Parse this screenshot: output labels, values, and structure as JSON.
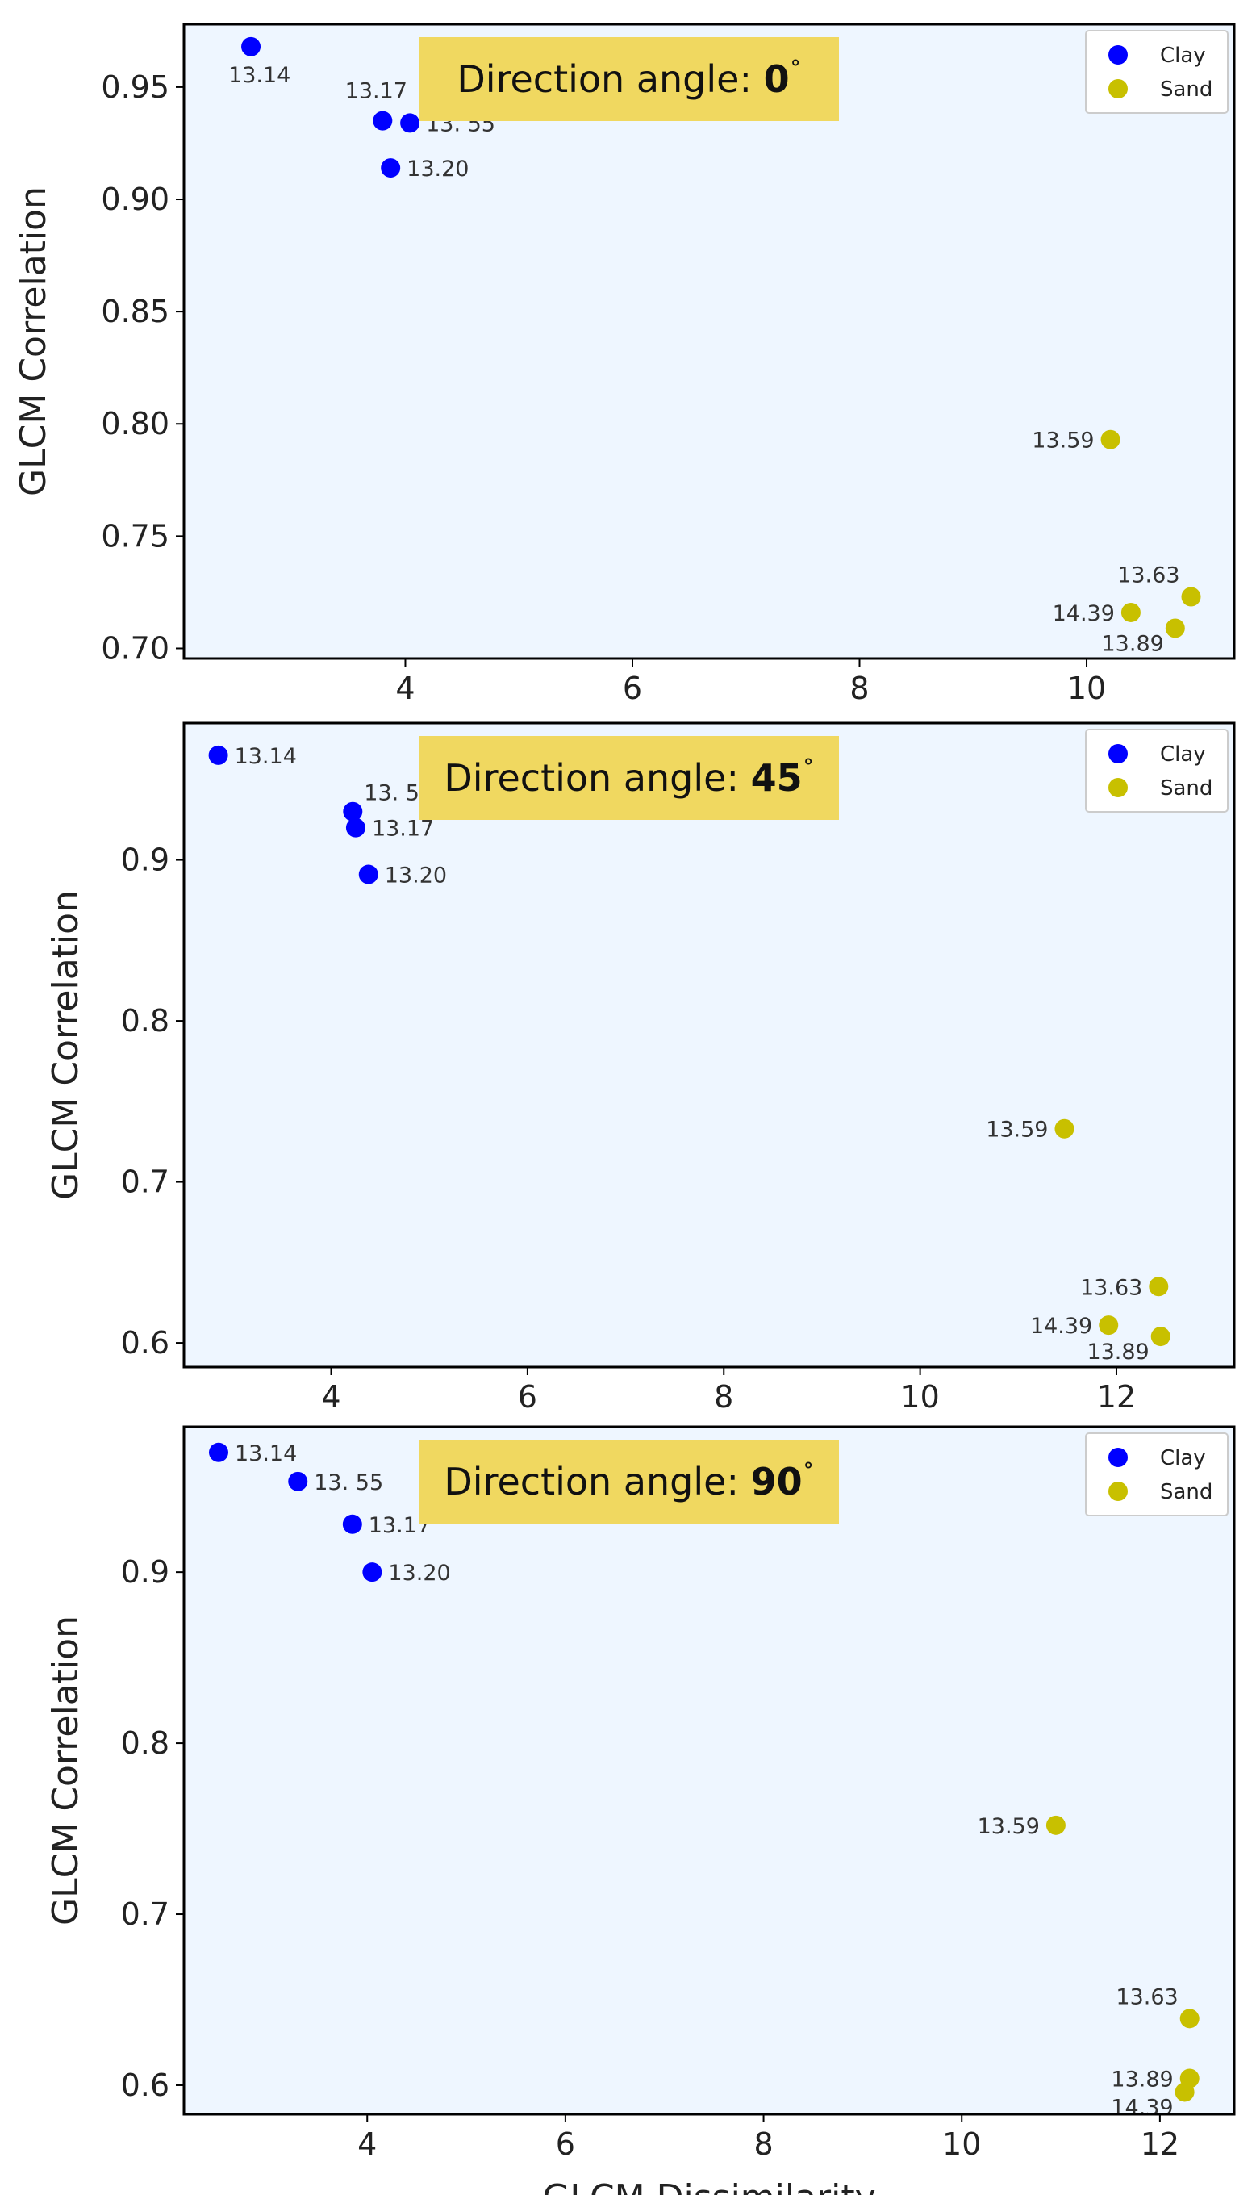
{
  "colors": {
    "plot_background": "#eef6ff",
    "frame": "#000000",
    "banner_background": "#f0d860",
    "page_background": "#ffffff"
  },
  "x_axis_title": "GLCM Dissimilarity",
  "chart_data": [
    {
      "type": "scatter",
      "banner": {
        "prefix": "Direction angle:",
        "value": "0",
        "suffix": "˚"
      },
      "xlabel": "",
      "ylabel": "GLCM Correlation",
      "xlim": [
        2.05,
        11.3
      ],
      "ylim": [
        0.6955,
        0.978
      ],
      "xticks": [
        4,
        6,
        8,
        10
      ],
      "xtick_labels": [
        "4",
        "6",
        "8",
        "10"
      ],
      "yticks": [
        0.7,
        0.75,
        0.8,
        0.85,
        0.9,
        0.95
      ],
      "ytick_labels": [
        "0.70",
        "0.75",
        "0.80",
        "0.85",
        "0.90",
        "0.95"
      ],
      "legend": {
        "position": "top-right",
        "entries": [
          {
            "label": "Clay",
            "color": "#0000ff"
          },
          {
            "label": "Sand",
            "color": "#c8c000"
          }
        ]
      },
      "series": [
        {
          "name": "Clay",
          "color": "#0000ff",
          "points": [
            {
              "x": 2.64,
              "y": 0.968,
              "label": "13.14",
              "label_pos": "below"
            },
            {
              "x": 3.8,
              "y": 0.935,
              "label": "13.17",
              "label_pos": "above"
            },
            {
              "x": 4.04,
              "y": 0.934,
              "label": "13. 55",
              "label_pos": "right"
            },
            {
              "x": 3.87,
              "y": 0.914,
              "label": "13.20",
              "label_pos": "right"
            }
          ]
        },
        {
          "name": "Sand",
          "color": "#c8c000",
          "points": [
            {
              "x": 10.21,
              "y": 0.793,
              "label": "13.59",
              "label_pos": "left"
            },
            {
              "x": 10.92,
              "y": 0.723,
              "label": "13.63",
              "label_pos": "above-left"
            },
            {
              "x": 10.39,
              "y": 0.716,
              "label": "14.39",
              "label_pos": "left"
            },
            {
              "x": 10.78,
              "y": 0.709,
              "label": "13.89",
              "label_pos": "below-left"
            }
          ]
        }
      ]
    },
    {
      "type": "scatter",
      "banner": {
        "prefix": "Direction angle:",
        "value": "45",
        "suffix": "˚"
      },
      "xlabel": "",
      "ylabel": "GLCM Correlation",
      "xlim": [
        2.5,
        13.2
      ],
      "ylim": [
        0.585,
        0.985
      ],
      "xticks": [
        4,
        6,
        8,
        10,
        12
      ],
      "xtick_labels": [
        "4",
        "6",
        "8",
        "10",
        "12"
      ],
      "yticks": [
        0.6,
        0.7,
        0.8,
        0.9
      ],
      "ytick_labels": [
        "0.6",
        "0.7",
        "0.8",
        "0.9"
      ],
      "legend": {
        "position": "top-right",
        "entries": [
          {
            "label": "Clay",
            "color": "#0000ff"
          },
          {
            "label": "Sand",
            "color": "#c8c000"
          }
        ]
      },
      "series": [
        {
          "name": "Clay",
          "color": "#0000ff",
          "points": [
            {
              "x": 2.85,
              "y": 0.965,
              "label": "13.14",
              "label_pos": "right"
            },
            {
              "x": 4.22,
              "y": 0.93,
              "label": "13. 55",
              "label_pos": "above-right"
            },
            {
              "x": 4.25,
              "y": 0.92,
              "label": "13.17",
              "label_pos": "right"
            },
            {
              "x": 4.38,
              "y": 0.891,
              "label": "13.20",
              "label_pos": "right"
            }
          ]
        },
        {
          "name": "Sand",
          "color": "#c8c000",
          "points": [
            {
              "x": 11.47,
              "y": 0.733,
              "label": "13.59",
              "label_pos": "left"
            },
            {
              "x": 12.43,
              "y": 0.635,
              "label": "13.63",
              "label_pos": "left"
            },
            {
              "x": 11.92,
              "y": 0.611,
              "label": "14.39",
              "label_pos": "left"
            },
            {
              "x": 12.45,
              "y": 0.604,
              "label": "13.89",
              "label_pos": "below-left"
            }
          ]
        }
      ]
    },
    {
      "type": "scatter",
      "banner": {
        "prefix": "Direction angle:",
        "value": "90",
        "suffix": "˚"
      },
      "xlabel": "GLCM Dissimilarity",
      "ylabel": "GLCM Correlation",
      "xlim": [
        2.15,
        12.75
      ],
      "ylim": [
        0.583,
        0.985
      ],
      "xticks": [
        4,
        6,
        8,
        10,
        12
      ],
      "xtick_labels": [
        "4",
        "6",
        "8",
        "10",
        "12"
      ],
      "yticks": [
        0.6,
        0.7,
        0.8,
        0.9
      ],
      "ytick_labels": [
        "0.6",
        "0.7",
        "0.8",
        "0.9"
      ],
      "legend": {
        "position": "top-right",
        "entries": [
          {
            "label": "Clay",
            "color": "#0000ff"
          },
          {
            "label": "Sand",
            "color": "#c8c000"
          }
        ]
      },
      "series": [
        {
          "name": "Clay",
          "color": "#0000ff",
          "points": [
            {
              "x": 2.5,
              "y": 0.97,
              "label": "13.14",
              "label_pos": "right"
            },
            {
              "x": 3.3,
              "y": 0.953,
              "label": "13. 55",
              "label_pos": "right"
            },
            {
              "x": 3.85,
              "y": 0.928,
              "label": "13.17",
              "label_pos": "right"
            },
            {
              "x": 4.05,
              "y": 0.9,
              "label": "13.20",
              "label_pos": "right"
            }
          ]
        },
        {
          "name": "Sand",
          "color": "#c8c000",
          "points": [
            {
              "x": 10.95,
              "y": 0.752,
              "label": "13.59",
              "label_pos": "left"
            },
            {
              "x": 12.3,
              "y": 0.639,
              "label": "13.63",
              "label_pos": "above-left"
            },
            {
              "x": 12.3,
              "y": 0.604,
              "label": "13.89",
              "label_pos": "left"
            },
            {
              "x": 12.25,
              "y": 0.596,
              "label": "14.39",
              "label_pos": "below-left"
            }
          ]
        }
      ]
    }
  ]
}
